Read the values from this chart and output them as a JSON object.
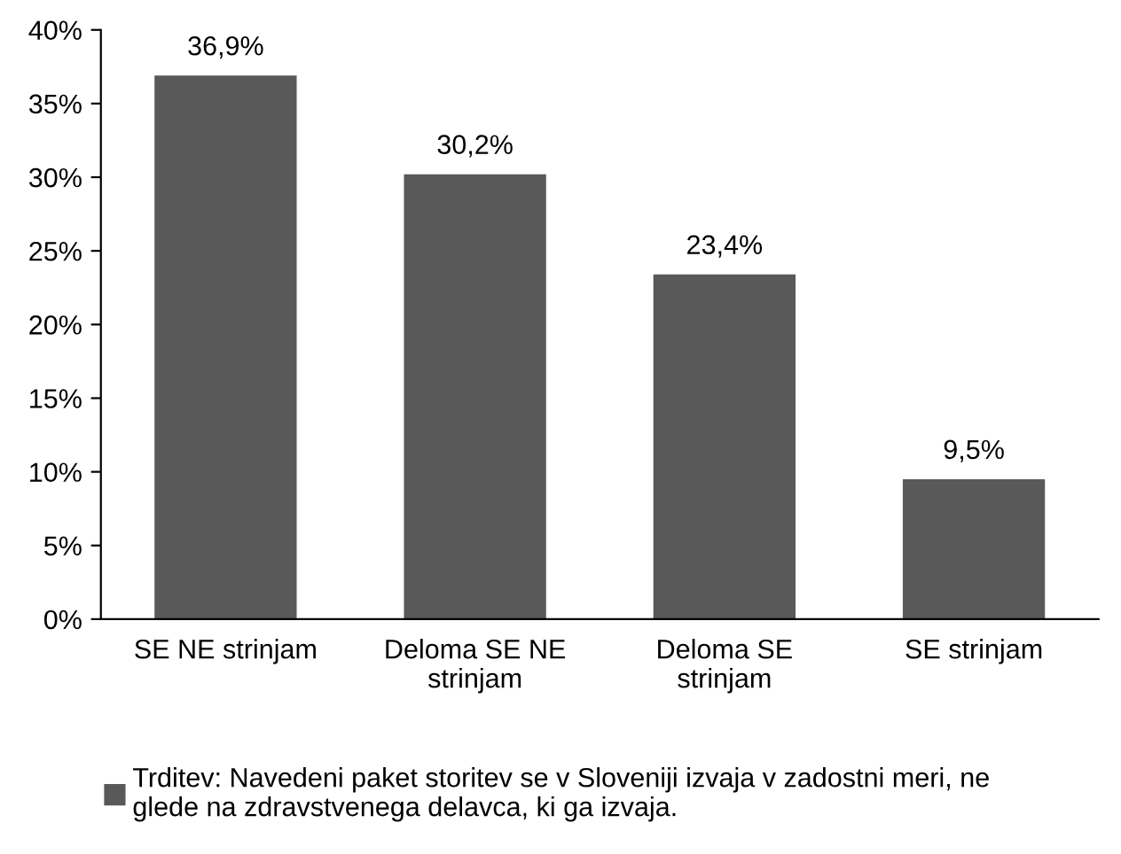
{
  "chart_data": {
    "type": "bar",
    "categories": [
      "SE NE strinjam",
      "Deloma SE NE strinjam",
      "Deloma SE strinjam",
      "SE strinjam"
    ],
    "series": [
      {
        "name": "Trditev: Navedeni paket storitev se v Sloveniji izvaja v zadostni meri, ne glede na zdravstvenega delavca, ki ga izvaja.",
        "color": "#595959",
        "values": [
          36.9,
          30.2,
          23.4,
          9.5
        ],
        "value_labels": [
          "36,9%",
          "30,2%",
          "23,4%",
          "9,5%"
        ]
      }
    ],
    "ylim": [
      0,
      40
    ],
    "yticks": [
      {
        "value": 0,
        "label": "0%"
      },
      {
        "value": 5,
        "label": "5%"
      },
      {
        "value": 10,
        "label": "10%"
      },
      {
        "value": 15,
        "label": "15%"
      },
      {
        "value": 20,
        "label": "20%"
      },
      {
        "value": 25,
        "label": "25%"
      },
      {
        "value": 30,
        "label": "30%"
      },
      {
        "value": 35,
        "label": "35%"
      },
      {
        "value": 40,
        "label": "40%"
      }
    ],
    "grid": false,
    "legend": "bottom"
  }
}
